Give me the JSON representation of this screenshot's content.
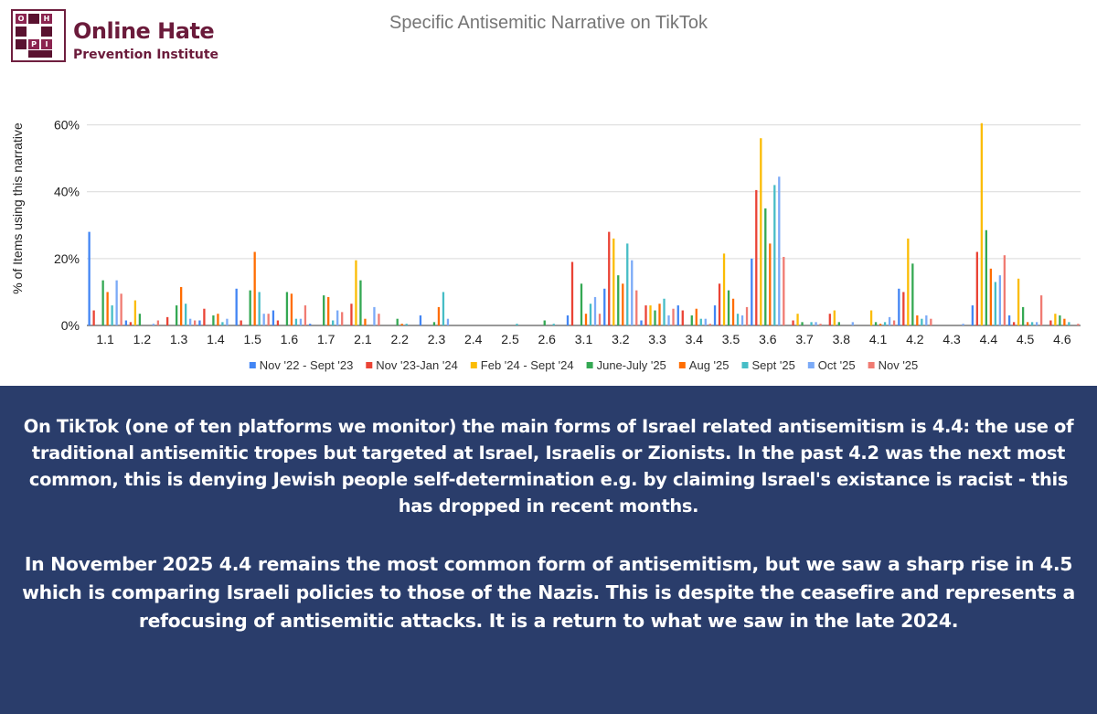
{
  "logo": {
    "keys": [
      "O",
      "H",
      "P",
      "I"
    ],
    "line1": "Online Hate",
    "line2": "Prevention Institute"
  },
  "colors": {
    "series": [
      "#4285f4",
      "#ea4335",
      "#fbbc04",
      "#34a853",
      "#ff6d01",
      "#46bdc6",
      "#7baaf7",
      "#f07b72"
    ],
    "panel_bg": "#2a3d6b"
  },
  "chart_data": {
    "type": "bar",
    "title": "Specific Antisemitic Narrative on TikTok",
    "ylabel": "% of Items using this narrative",
    "xlabel": "",
    "ylim": [
      0,
      70
    ],
    "yticks": [
      0,
      20,
      40,
      60
    ],
    "ytick_labels": [
      "0%",
      "20%",
      "40%",
      "60%"
    ],
    "grid": true,
    "legend_position": "bottom",
    "categories": [
      "1.1",
      "1.2",
      "1.3",
      "1.4",
      "1.5",
      "1.6",
      "1.7",
      "2.1",
      "2.2",
      "2.3",
      "2.4",
      "2.5",
      "2.6",
      "3.1",
      "3.2",
      "3.3",
      "3.4",
      "3.5",
      "3.6",
      "3.7",
      "3.8",
      "4.1",
      "4.2",
      "4.3",
      "4.4",
      "4.5",
      "4.6"
    ],
    "series": [
      {
        "name": "Nov '22  - Sept '23",
        "values": [
          28,
          1.5,
          0,
          1.5,
          11,
          4.5,
          0.5,
          0,
          0,
          3,
          0,
          0,
          0,
          3,
          11,
          1.5,
          6,
          6,
          20,
          0,
          0,
          0,
          11,
          0,
          6,
          3,
          0
        ]
      },
      {
        "name": "Nov '23-Jan '24",
        "values": [
          4.5,
          1,
          2.5,
          5,
          1.5,
          1.5,
          0,
          6.5,
          0,
          0,
          0,
          0,
          0,
          19,
          28,
          6,
          4.5,
          12.5,
          40.5,
          1.5,
          3.5,
          0,
          10,
          0,
          22,
          1,
          1.5
        ]
      },
      {
        "name": "Feb '24 - Sept '24",
        "values": [
          0,
          7.5,
          0,
          0,
          0,
          0,
          0,
          19.5,
          0,
          0,
          0,
          0,
          0,
          0,
          26,
          6,
          0,
          21.5,
          56,
          3.5,
          4.5,
          4.5,
          26,
          0,
          60.5,
          14,
          3.5
        ]
      },
      {
        "name": "June-July '25",
        "values": [
          13.5,
          3.5,
          6,
          3,
          10.5,
          10,
          9,
          13.5,
          2,
          1,
          0,
          0,
          1.5,
          12.5,
          15,
          4.5,
          3,
          10.5,
          35,
          1,
          1,
          1,
          18.5,
          0,
          28.5,
          5.5,
          3
        ]
      },
      {
        "name": "Aug '25",
        "values": [
          10,
          0,
          11.5,
          3.5,
          22,
          9.5,
          8.5,
          2,
          0.5,
          5.5,
          0,
          0,
          0,
          3.5,
          12.5,
          6.5,
          5,
          8,
          24.5,
          0,
          0,
          0.5,
          3,
          0,
          17,
          1,
          2
        ]
      },
      {
        "name": "Sept '25",
        "values": [
          6,
          0,
          6.5,
          1,
          10,
          2,
          1.5,
          0,
          0.5,
          10,
          0,
          0.5,
          0.5,
          6.5,
          24.5,
          8,
          2,
          3.5,
          42,
          1,
          0,
          1,
          2,
          0,
          13,
          1,
          1
        ]
      },
      {
        "name": "Oct '25",
        "values": [
          13.5,
          0.5,
          2,
          2,
          3.5,
          2,
          4.5,
          5.5,
          0,
          2,
          0,
          0,
          0,
          8.5,
          19.5,
          3,
          2,
          3,
          44.5,
          1,
          1,
          2.5,
          3,
          0.5,
          15,
          1,
          0
        ]
      },
      {
        "name": "Nov '25",
        "values": [
          9.5,
          1.5,
          1.5,
          0,
          3.5,
          6,
          4,
          3.5,
          0,
          0,
          0,
          0,
          0,
          3.5,
          10.5,
          5,
          0.5,
          5.5,
          20.5,
          0.5,
          0,
          1.5,
          2,
          0,
          21,
          9,
          0.5
        ]
      }
    ]
  },
  "text": {
    "para1": "On TikTok (one of ten platforms we monitor) the main forms of Israel related antisemitism is 4.4: the use of traditional antisemitic tropes but targeted at Israel, Israelis or Zionists. In the past 4.2 was the next most common, this is denying Jewish people self-determination e.g. by claiming Israel's existance is racist - this has dropped in recent months.",
    "para2": "In November 2025 4.4 remains the most common form of antisemitism, but we saw a sharp rise in 4.5 which is comparing Israeli policies to those of the Nazis. This is despite the ceasefire and represents a refocusing of antisemitic attacks. It is a return to what we saw in the late 2024."
  }
}
